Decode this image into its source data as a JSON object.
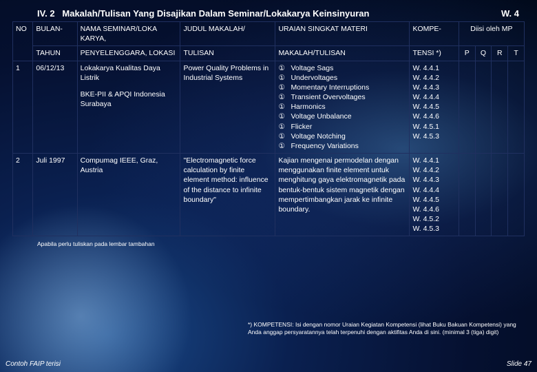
{
  "section_no": "IV. 2",
  "title": "Makalah/Tulisan Yang Disajikan Dalam Seminar/Lokakarya Keinsinyuran",
  "w_label": "W. 4",
  "header": {
    "no": "NO",
    "bulan1": "BULAN-",
    "bulan2": "TAHUN",
    "nama1": "NAMA SEMINAR/LOKA KARYA,",
    "nama2": "PENYELENGGARA, LOKASI",
    "judul1": "JUDUL MAKALAH/",
    "judul2": "TULISAN",
    "uraian1": "URAIAN SINGKAT MATERI",
    "uraian2": "MAKALAH/TULISAN",
    "komp1": "KOMPE-",
    "komp2": "TENSI *)",
    "diisi": "Diisi oleh MP",
    "p": "P",
    "q": "Q",
    "r": "R",
    "t": "T"
  },
  "row1": {
    "no": "1",
    "bulan": "06/12/13",
    "nama_a": "Lokakarya Kualitas Daya Listrik",
    "nama_b": "BKE-PII & APQI Indonesia Surabaya",
    "judul": "Power Quality Problems in Industrial Systems",
    "uraian": [
      "Voltage Sags",
      "Undervoltages",
      "Momentary Interruptions",
      "Transient Overvoltages",
      "Harmonics",
      "Voltage Unbalance",
      "Flicker",
      "Voltage Notching",
      "Frequency Variations"
    ],
    "komp": [
      "W. 4.4.1",
      "W. 4.4.2",
      "W. 4.4.3",
      "W. 4.4.4",
      "W. 4.4.5",
      "W. 4.4.6",
      "W. 4.5.1",
      "W. 4.5.3"
    ]
  },
  "row2": {
    "no": "2",
    "bulan": "Juli 1997",
    "nama": "Compumag IEEE, Graz, Austria",
    "judul": "\"Electromagnetic force calculation by finite element method: influence of the distance to infinite boundary\"",
    "uraian": "Kajian mengenai permodelan dengan menggunakan finite element untuk menghitung gaya elektromagnetik pada bentuk-bentuk sistem magnetik dengan mempertimbangkan jarak ke infinite boundary.",
    "komp": [
      "W. 4.4.1",
      "W. 4.4.2",
      "W. 4.4.3",
      "W. 4.4.4",
      "W. 4.4.5",
      "W. 4.4.6",
      "W. 4.5.2",
      "W. 4.5.3"
    ]
  },
  "note1": "Apabila perlu tuliskan pada lembar tambahan",
  "note2": "*)   KOMPETENSI: Isi dengan nomor  Uraian Kegiatan Kompetensi (lihat Buku Bakuan Kompetensi) yang Anda anggap persyaratannya telah terpenuhi  dengan aktifitas Anda di sini. (minimal 3 (tiga) digit)",
  "footer_left": "Contoh FAIP terisi",
  "footer_right": "Slide 47",
  "bullet_symbol": "①"
}
